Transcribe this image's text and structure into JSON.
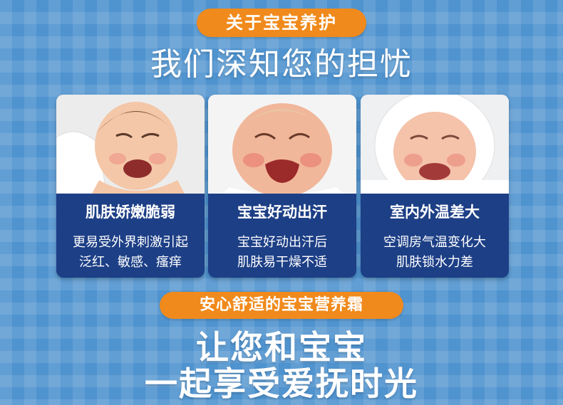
{
  "section_label": "关于宝宝养护",
  "headline": "我们深知您的担忧",
  "cards": [
    {
      "title": "肌肤娇嫩脆弱",
      "lines": [
        "更易受外界刺激引起",
        "泛红、敏感、瘙痒"
      ]
    },
    {
      "title": "宝宝好动出汗",
      "lines": [
        "宝宝好动出汗后",
        "肌肤易干燥不适"
      ]
    },
    {
      "title": "室内外温差大",
      "lines": [
        "空调房气温变化大",
        "肌肤锁水力差"
      ]
    }
  ],
  "product_label": "安心舒适的宝宝营养霜",
  "closing": {
    "line1": "让您和宝宝",
    "line2": "一起享受爱抚时光"
  },
  "colors": {
    "background": "#4f93cf",
    "accent": "#f08a1c",
    "card": "#1d3f86",
    "text": "#ffffff"
  }
}
